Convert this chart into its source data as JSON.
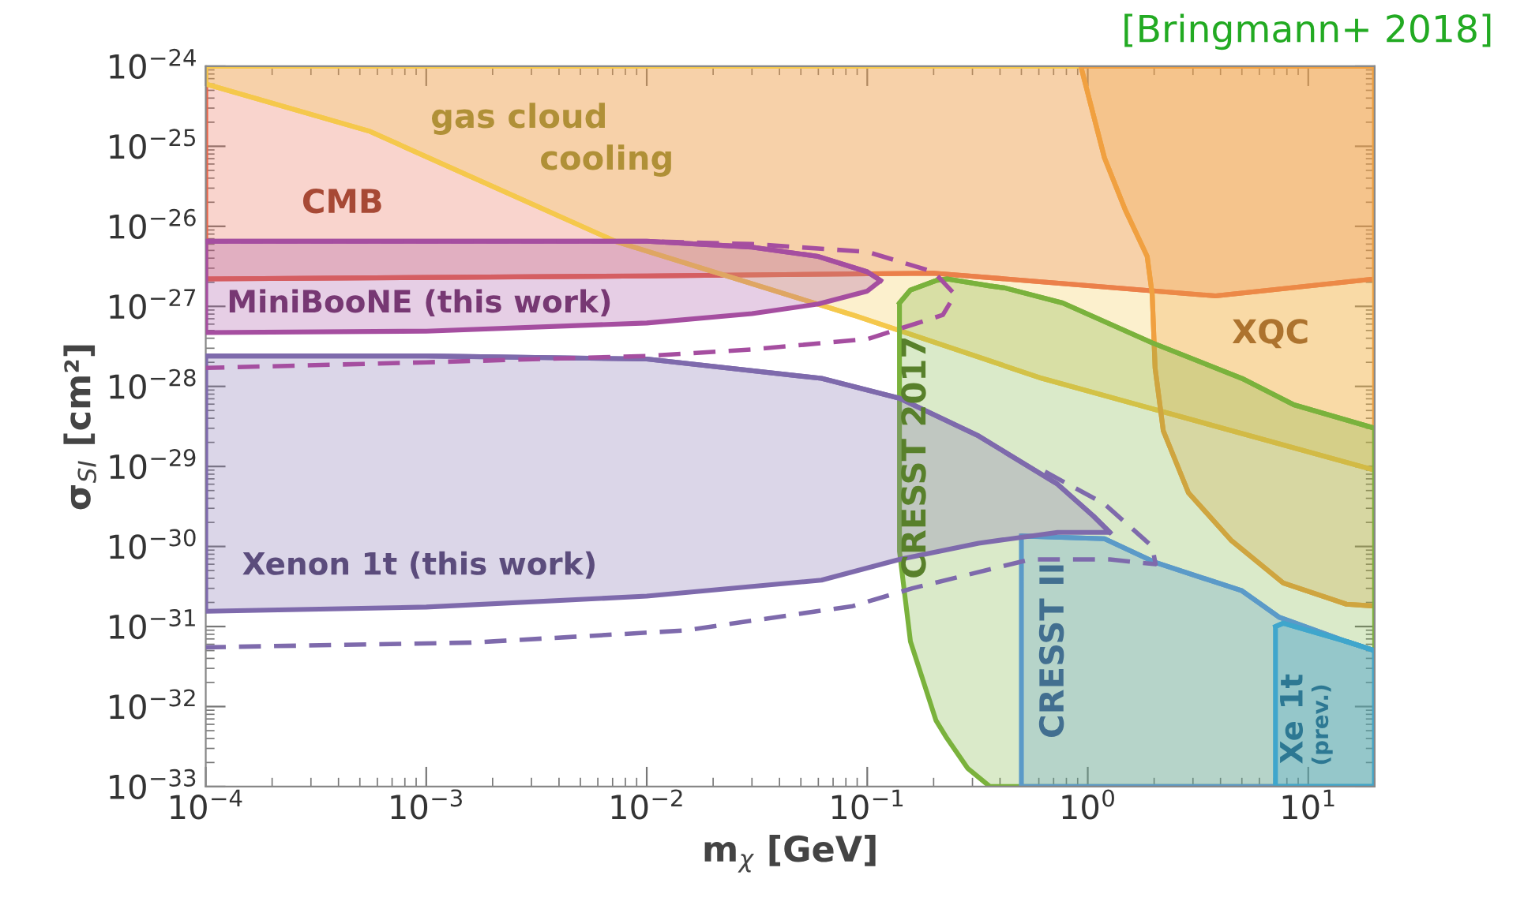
{
  "chart_data": {
    "type": "line",
    "xlabel": "m$_{χ}$ [GeV]",
    "ylabel": "σ$_{SI}$ [cm²]",
    "log": "xy",
    "grid": false,
    "legend": false,
    "xlim": [
      0.0001,
      20
    ],
    "ylim": [
      1e-33,
      1e-24
    ],
    "xticks": [
      {
        "value": 0.0001,
        "label": "10$^{−4}$"
      },
      {
        "value": 0.001,
        "label": "10$^{−3}$"
      },
      {
        "value": 0.01,
        "label": "10$^{−2}$"
      },
      {
        "value": 0.1,
        "label": "10$^{−1}$"
      },
      {
        "value": 1,
        "label": "10$^{0}$"
      },
      {
        "value": 10,
        "label": "10$^{1}$"
      }
    ],
    "yticks": [
      {
        "value": 1e-24,
        "label": "10$^{−24}$"
      },
      {
        "value": 1e-25,
        "label": "10$^{−25}$"
      },
      {
        "value": 1e-26,
        "label": "10$^{−26}$"
      },
      {
        "value": 1e-27,
        "label": "10$^{−27}$"
      },
      {
        "value": 1e-28,
        "label": "10$^{−28}$"
      },
      {
        "value": 1e-29,
        "label": "10$^{−29}$"
      },
      {
        "value": 1e-30,
        "label": "10$^{−30}$"
      },
      {
        "value": 1e-31,
        "label": "10$^{−31}$"
      },
      {
        "value": 1e-32,
        "label": "10$^{−32}$"
      },
      {
        "value": 1e-33,
        "label": "10$^{−33}$"
      }
    ],
    "series": [
      {
        "color": "#e8654a",
        "x": [
          0.0001,
          0.01,
          0.2,
          3.8,
          20
        ],
        "values": [
          2.2e-27,
          2.4e-27,
          2.6e-27,
          1.35e-27,
          2.2e-27
        ],
        "upper": [
          1e-24,
          1e-24,
          1e-24,
          1e-24,
          1e-24
        ],
        "lower": [
          2.2e-27,
          2.4e-27,
          2.6e-27,
          1.35e-27,
          2.2e-27
        ]
      },
      {
        "color": "#f5c84c",
        "x": [
          0.0001,
          0.00055,
          0.0072,
          0.086,
          0.62,
          20
        ],
        "values": [
          6e-25,
          1.55e-25,
          6.5e-27,
          7.8e-28,
          1.26e-28,
          9e-30
        ],
        "upper": [
          1e-24,
          1e-24,
          1e-24,
          1e-24,
          1e-24,
          1e-24
        ],
        "lower": [
          6e-25,
          1.55e-25,
          6.5e-27,
          7.8e-28,
          1.26e-28,
          9e-30
        ]
      },
      {
        "color": "#f0a040",
        "x": [
          0.93,
          1.19,
          1.48,
          1.86,
          1.96,
          2.02,
          2.2,
          2.86,
          4.46,
          7.7,
          14.9,
          20
        ],
        "values": [
          1e-24,
          7.2e-26,
          1.6e-26,
          4.2e-27,
          1.4e-27,
          1.7e-28,
          2.8e-29,
          4.7e-30,
          1.2e-30,
          3.5e-31,
          1.9e-31,
          1.8e-31
        ],
        "upper": [
          1e-24,
          1e-24,
          1e-24,
          1e-24,
          1e-24,
          1e-24,
          1e-24,
          1e-24,
          1e-24,
          1e-24,
          1e-24,
          1e-24
        ],
        "lower": [
          1e-24,
          7.2e-26,
          1.6e-26,
          4.2e-27,
          1.4e-27,
          1.7e-28,
          2.8e-29,
          4.7e-30,
          1.2e-30,
          3.5e-31,
          1.9e-31,
          1.8e-31
        ]
      },
      {
        "color": "#7ab23c",
        "x": [
          0.14,
          0.157,
          0.205,
          0.23,
          0.285,
          0.36,
          0.42,
          0.77,
          1.96,
          5.0,
          8.6,
          20
        ],
        "values": [
          1.1e-27,
          1.6e-27,
          2.1e-27,
          2.2e-27,
          2e-27,
          1.8e-27,
          1.7e-27,
          1.1e-27,
          3.5e-28,
          1.26e-28,
          5.9e-29,
          3e-29
        ],
        "upper": [
          1.1e-27,
          1.6e-27,
          2.1e-27,
          2.2e-27,
          2e-27,
          1.8e-27,
          1.7e-27,
          1.1e-27,
          3.5e-28,
          1.26e-28,
          5.9e-29,
          3e-29
        ],
        "lower": [
          8.7e-31,
          6.5e-32,
          6.7e-33,
          4e-33,
          1.7e-33,
          1e-33,
          1e-33,
          1e-33,
          1e-33,
          1e-33,
          1e-33,
          1e-33
        ]
      },
      {
        "color": "#5b9ac8",
        "x": [
          0.5,
          1.19,
          2.03,
          5.0,
          7.4,
          14.9,
          20
        ],
        "values": [
          1.35e-30,
          1.25e-30,
          6.3e-31,
          2.8e-31,
          1.3e-31,
          6.5e-32,
          5e-32
        ],
        "upper": [
          1.35e-30,
          1.25e-30,
          6.3e-31,
          2.8e-31,
          1.3e-31,
          6.5e-32,
          5e-32
        ],
        "lower": [
          1e-33,
          1e-33,
          1e-33,
          1e-33,
          1e-33,
          1e-33,
          1e-33
        ]
      },
      {
        "color": "#3fa6cc",
        "x": [
          7.1,
          7.7,
          14.9,
          20
        ],
        "values": [
          1e-31,
          1.1e-31,
          6.5e-32,
          5e-32
        ],
        "upper": [
          1e-31,
          1.1e-31,
          6.5e-32,
          5e-32
        ],
        "lower": [
          1e-33,
          1e-33,
          1e-33,
          1e-33
        ]
      },
      {
        "color": "#a54ea0",
        "x": [
          0.0001,
          0.001,
          0.01,
          0.03,
          0.06,
          0.1,
          0.115
        ],
        "values": [
          6.5e-27,
          6.5e-27,
          6.5e-27,
          5.5e-27,
          4.2e-27,
          2.7e-27,
          2.1e-27
        ],
        "upper": [
          6.5e-27,
          6.5e-27,
          6.5e-27,
          5.5e-27,
          4.2e-27,
          2.7e-27,
          2.1e-27
        ],
        "lower": [
          4.7e-28,
          4.9e-28,
          6.2e-28,
          8.1e-28,
          1.07e-27,
          1.55e-27,
          2.1e-27
        ]
      },
      {
        "color": "#7e6aac",
        "x": [
          0.0001,
          0.001,
          0.01,
          0.062,
          0.14,
          0.32,
          0.73,
          1.06,
          1.26
        ],
        "values": [
          2.4e-28,
          2.4e-28,
          2.2e-28,
          1.26e-28,
          7.1e-29,
          2.4e-29,
          6e-30,
          2.4e-30,
          1.5e-30
        ],
        "upper": [
          2.4e-28,
          2.4e-28,
          2.2e-28,
          1.26e-28,
          7.1e-29,
          2.4e-29,
          6e-30,
          2.4e-30,
          1.5e-30
        ],
        "lower": [
          1.55e-31,
          1.75e-31,
          2.4e-31,
          3.8e-31,
          6.9e-31,
          1.1e-30,
          1.5e-30,
          1.5e-30,
          1.5e-30
        ]
      },
      {
        "line_style": "dashed",
        "color": "#a54ea0",
        "x": [
          0.0001,
          0.001,
          0.01,
          0.03,
          0.1,
          0.2,
          0.25,
          0.22,
          0.1,
          0.03,
          0.01,
          0.001,
          0.0001
        ],
        "values": [
          6.5e-27,
          6.5e-27,
          6.5e-27,
          6e-27,
          4.8e-27,
          2.7e-27,
          1.4e-27,
          7.8e-28,
          3.9e-28,
          2.9e-28,
          2.4e-28,
          2e-28,
          1.7e-28
        ]
      },
      {
        "line_style": "dashed",
        "color": "#7e6aac",
        "x": [
          0.64,
          1.19,
          1.96,
          2.03,
          1.26,
          0.55,
          0.16,
          0.086,
          0.0147,
          0.0016,
          0.0001
        ],
        "values": [
          8.6e-30,
          3.4e-30,
          1e-30,
          6e-31,
          6.9e-31,
          6.9e-31,
          3e-31,
          1.8e-31,
          8.9e-32,
          6.3e-32,
          5.5e-32
        ]
      }
    ],
    "annotations": [
      "[Bringmann+ 2018]",
      "CMB",
      "gas cloud",
      "cooling",
      "MiniBooNE (this work)",
      "Xenon 1t (this work)",
      "XQC",
      "CRESST 2017",
      "CRESST II",
      "Xe 1t",
      "(prev.)"
    ]
  }
}
